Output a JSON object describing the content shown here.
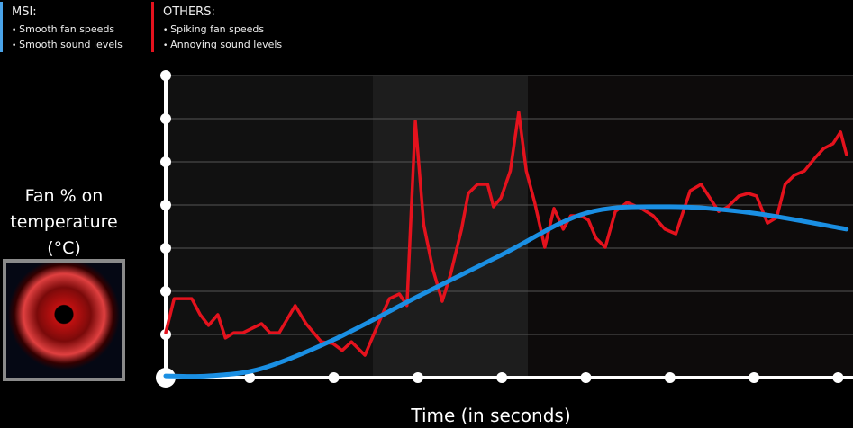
{
  "legend": {
    "msi": {
      "title": "MSI:",
      "items": [
        "Smooth fan speeds",
        "Smooth sound levels"
      ],
      "color": "#4aa3e8"
    },
    "others": {
      "title": "OTHERS:",
      "items": [
        "Spiking fan speeds",
        "Annoying sound levels"
      ],
      "color": "#e4121d"
    }
  },
  "chart_data": {
    "type": "line",
    "title": "",
    "xlabel": "Time (in seconds)",
    "ylabel": "Fan % on temperature (°C)",
    "xlim": [
      0,
      8.1
    ],
    "ylim": [
      0,
      7
    ],
    "x_ticks": [
      0,
      1,
      2,
      3,
      4,
      5,
      6,
      7,
      8
    ],
    "y_ticks": [
      0,
      1,
      2,
      3,
      4,
      5,
      6,
      7
    ],
    "grid": true,
    "series": [
      {
        "name": "OTHERS",
        "color": "#e4121d",
        "points": [
          [
            0,
            1.04
          ],
          [
            0.1,
            1.83
          ],
          [
            0.31,
            1.83
          ],
          [
            0.41,
            1.46
          ],
          [
            0.51,
            1.21
          ],
          [
            0.62,
            1.46
          ],
          [
            0.71,
            0.92
          ],
          [
            0.81,
            1.04
          ],
          [
            0.92,
            1.04
          ],
          [
            1.14,
            1.25
          ],
          [
            1.24,
            1.04
          ],
          [
            1.35,
            1.04
          ],
          [
            1.54,
            1.67
          ],
          [
            1.67,
            1.25
          ],
          [
            1.85,
            0.83
          ],
          [
            1.99,
            0.79
          ],
          [
            2.1,
            0.63
          ],
          [
            2.21,
            0.83
          ],
          [
            2.37,
            0.52
          ],
          [
            2.53,
            1.25
          ],
          [
            2.66,
            1.83
          ],
          [
            2.78,
            1.94
          ],
          [
            2.87,
            1.67
          ],
          [
            2.97,
            5.94
          ],
          [
            3.07,
            3.54
          ],
          [
            3.18,
            2.5
          ],
          [
            3.29,
            1.77
          ],
          [
            3.39,
            2.4
          ],
          [
            3.52,
            3.44
          ],
          [
            3.6,
            4.27
          ],
          [
            3.71,
            4.48
          ],
          [
            3.83,
            4.48
          ],
          [
            3.9,
            3.96
          ],
          [
            3.99,
            4.17
          ],
          [
            4.1,
            4.79
          ],
          [
            4.2,
            6.15
          ],
          [
            4.29,
            4.79
          ],
          [
            4.39,
            4.06
          ],
          [
            4.51,
            3.02
          ],
          [
            4.62,
            3.92
          ],
          [
            4.73,
            3.44
          ],
          [
            4.82,
            3.75
          ],
          [
            4.94,
            3.75
          ],
          [
            5.03,
            3.65
          ],
          [
            5.12,
            3.23
          ],
          [
            5.23,
            3.02
          ],
          [
            5.35,
            3.85
          ],
          [
            5.49,
            4.06
          ],
          [
            5.66,
            3.92
          ],
          [
            5.8,
            3.75
          ],
          [
            5.94,
            3.44
          ],
          [
            6.07,
            3.33
          ],
          [
            6.24,
            4.33
          ],
          [
            6.37,
            4.48
          ],
          [
            6.58,
            3.85
          ],
          [
            6.69,
            3.96
          ],
          [
            6.82,
            4.21
          ],
          [
            6.93,
            4.27
          ],
          [
            7.03,
            4.21
          ],
          [
            7.16,
            3.58
          ],
          [
            7.27,
            3.71
          ],
          [
            7.37,
            4.48
          ],
          [
            7.48,
            4.69
          ],
          [
            7.6,
            4.79
          ],
          [
            7.73,
            5.1
          ],
          [
            7.83,
            5.31
          ],
          [
            7.94,
            5.42
          ],
          [
            8.03,
            5.69
          ],
          [
            8.1,
            5.17
          ]
        ]
      },
      {
        "name": "MSI",
        "color": "#1a8fe3",
        "points": [
          [
            0,
            0.04
          ],
          [
            0.5,
            0.04
          ],
          [
            1.14,
            0.21
          ],
          [
            2,
            0.88
          ],
          [
            3,
            1.88
          ],
          [
            4,
            2.85
          ],
          [
            5,
            3.81
          ],
          [
            6,
            3.96
          ],
          [
            7,
            3.81
          ],
          [
            8.1,
            3.44
          ]
        ]
      }
    ]
  }
}
